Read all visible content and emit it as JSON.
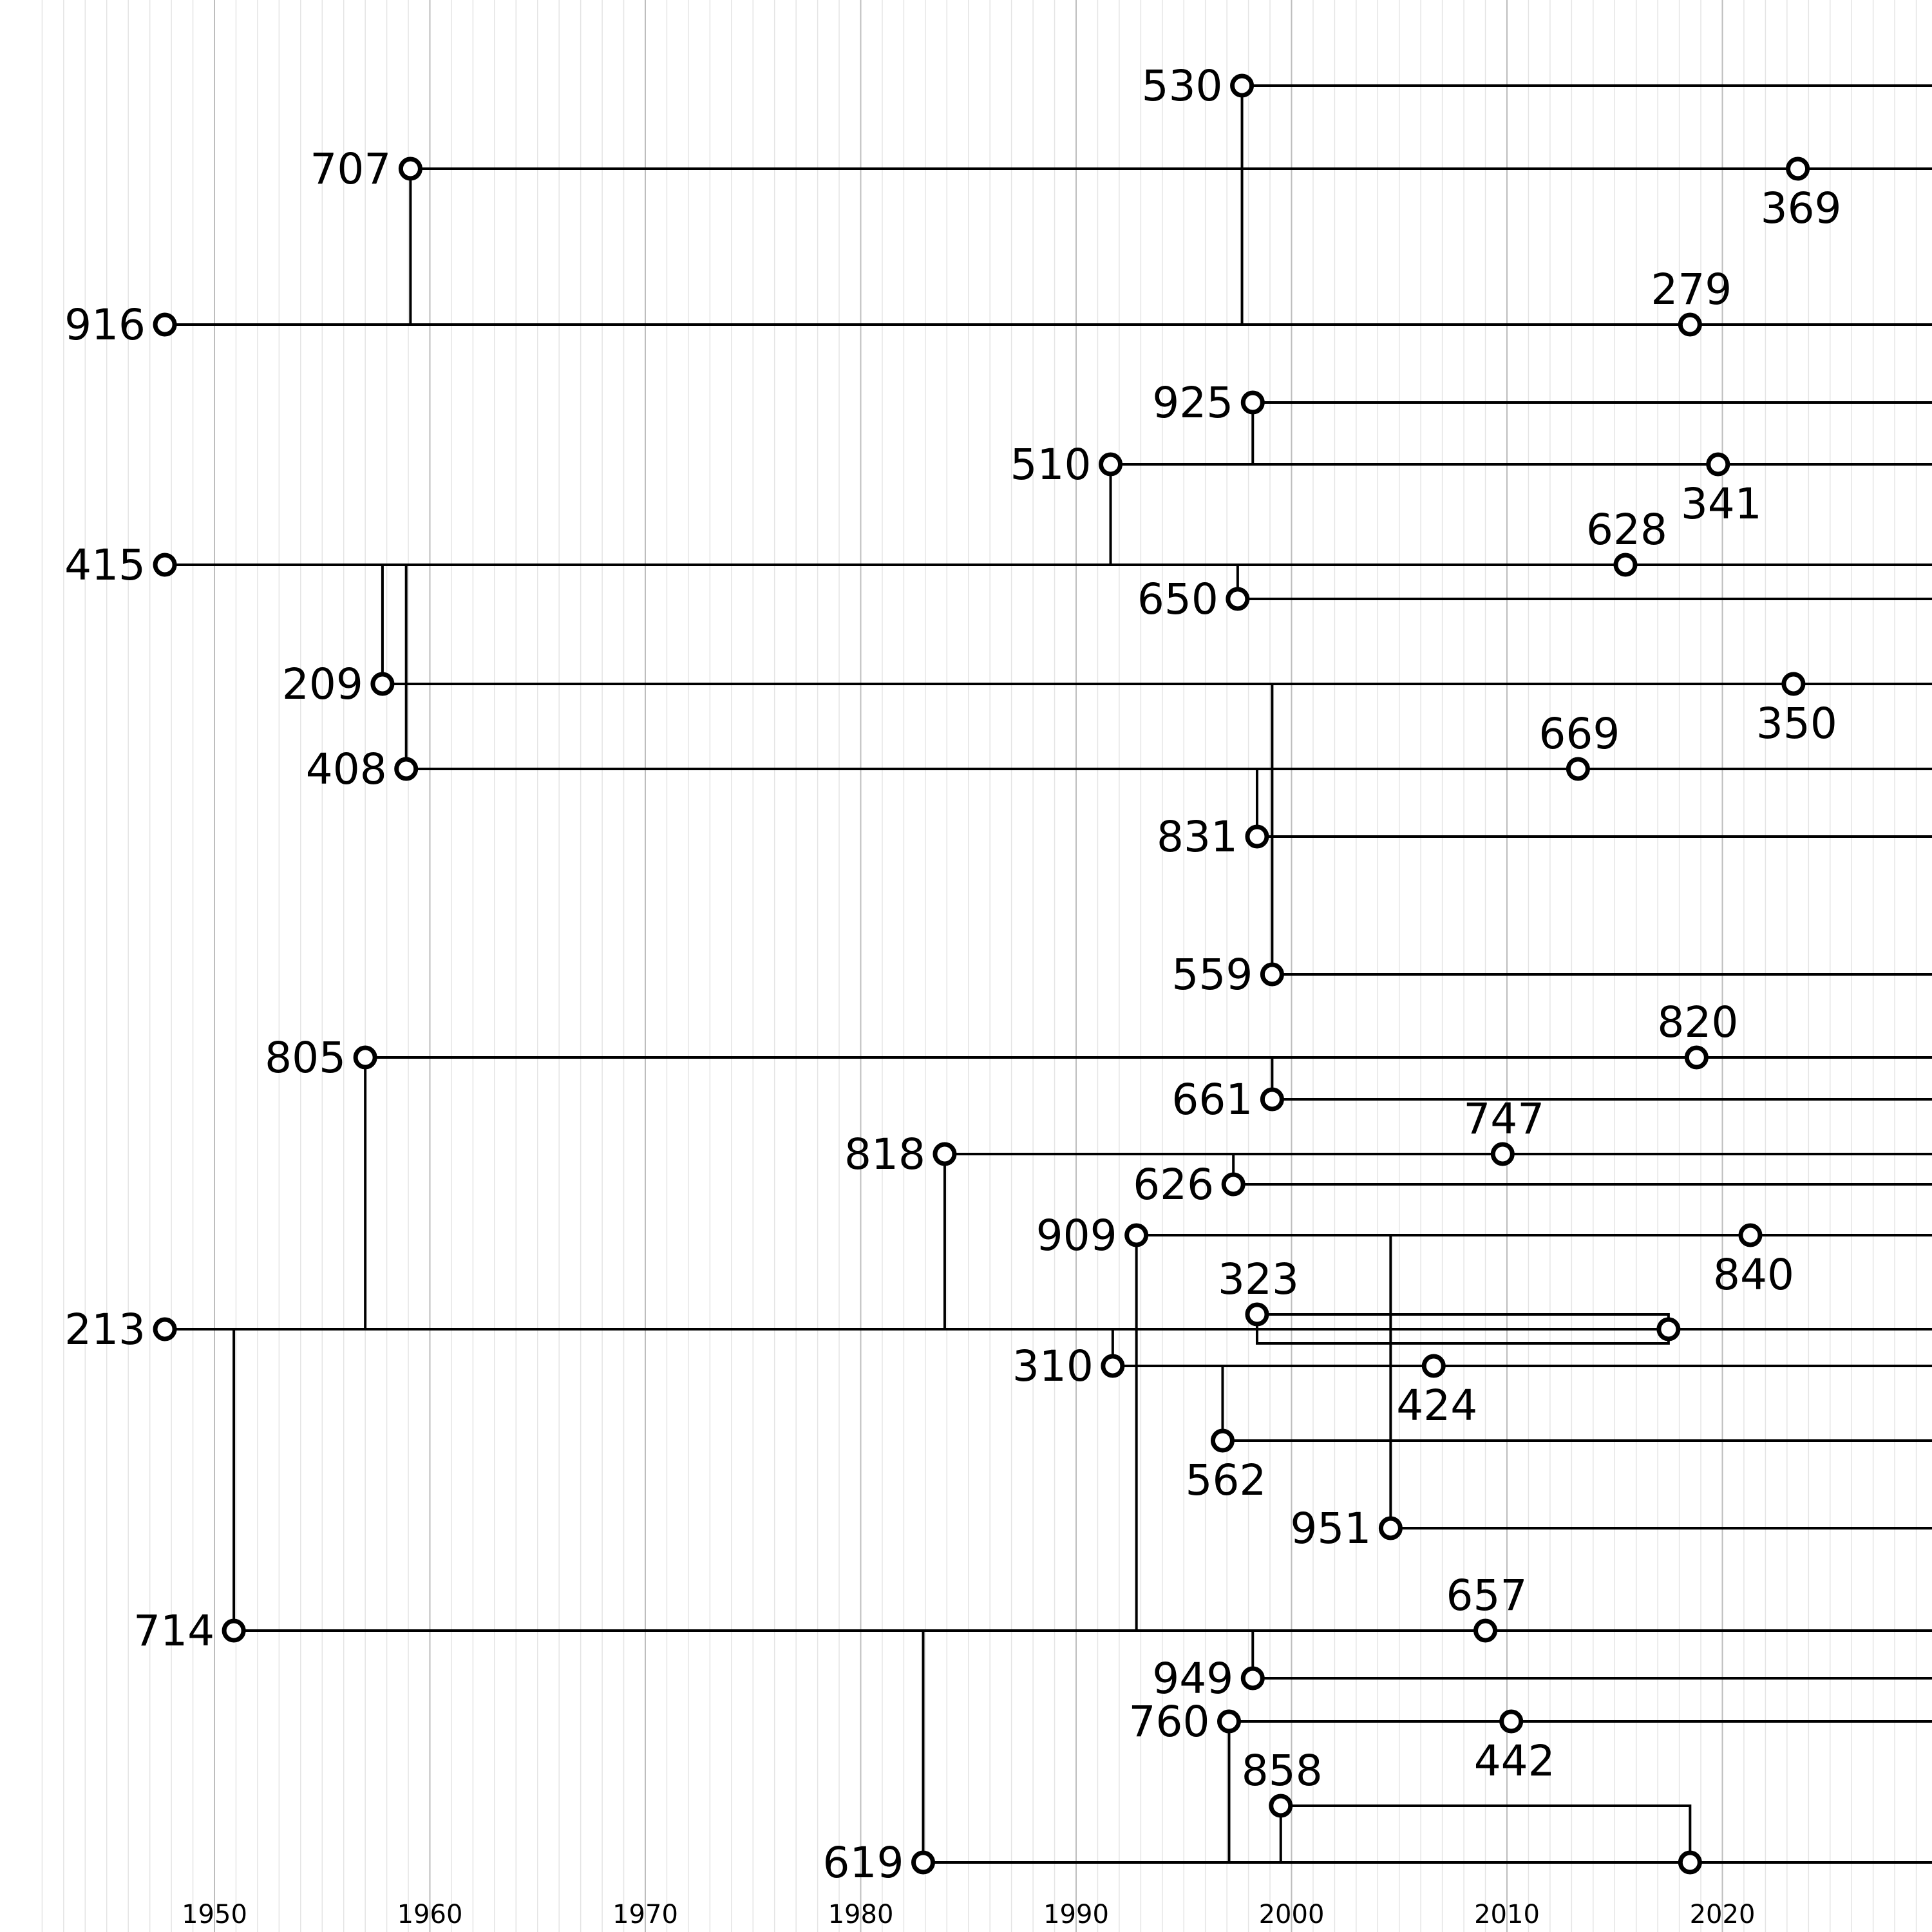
{
  "axis": {
    "years": [
      "1950",
      "1960",
      "1970",
      "1980",
      "1990",
      "2000",
      "2010",
      "2020"
    ],
    "x_start_year": 1942,
    "x_end_year": 2031
  },
  "nodes": [
    {
      "id": "530",
      "year": 1997.7,
      "lane": 1,
      "label": "left"
    },
    {
      "id": "707",
      "year": 1959.1,
      "lane": 2,
      "label": "left"
    },
    {
      "id": "369",
      "year": 2023.5,
      "lane": 2,
      "label": "below"
    },
    {
      "id": "916",
      "year": 1947.7,
      "lane": 3,
      "label": "left"
    },
    {
      "id": "279",
      "year": 2018.5,
      "lane": 3,
      "label": "above"
    },
    {
      "id": "925",
      "year": 1998.2,
      "lane": 4,
      "label": "left"
    },
    {
      "id": "510",
      "year": 1991.6,
      "lane": 5,
      "label": "left"
    },
    {
      "id": "341",
      "year": 2019.8,
      "lane": 5,
      "label": "below"
    },
    {
      "id": "415",
      "year": 1947.7,
      "lane": 6,
      "label": "left"
    },
    {
      "id": "628",
      "year": 2015.5,
      "lane": 6,
      "label": "above"
    },
    {
      "id": "650",
      "year": 1997.5,
      "lane": 7,
      "label": "left"
    },
    {
      "id": "209",
      "year": 1957.8,
      "lane": 8,
      "label": "left"
    },
    {
      "id": "350",
      "year": 2023.3,
      "lane": 8,
      "label": "below"
    },
    {
      "id": "408",
      "year": 1958.9,
      "lane": 9,
      "label": "left"
    },
    {
      "id": "669",
      "year": 2013.3,
      "lane": 9,
      "label": "above"
    },
    {
      "id": "831",
      "year": 1998.4,
      "lane": 10,
      "label": "left"
    },
    {
      "id": "559",
      "year": 1999.1,
      "lane": 11,
      "label": "left"
    },
    {
      "id": "805",
      "year": 1957.0,
      "lane": 12,
      "label": "left"
    },
    {
      "id": "820",
      "year": 2018.8,
      "lane": 12,
      "label": "above"
    },
    {
      "id": "661",
      "year": 1999.1,
      "lane": 13,
      "label": "left"
    },
    {
      "id": "818",
      "year": 1983.9,
      "lane": 14,
      "label": "left"
    },
    {
      "id": "747",
      "year": 2009.8,
      "lane": 14,
      "label": "above"
    },
    {
      "id": "626",
      "year": 1997.3,
      "lane": 15,
      "label": "left"
    },
    {
      "id": "909",
      "year": 1992.8,
      "lane": 16,
      "label": "left"
    },
    {
      "id": "840",
      "year": 2021.3,
      "lane": 16,
      "label": "below"
    },
    {
      "id": "323",
      "year": 1998.4,
      "lane": 17,
      "label": "above"
    },
    {
      "id": "213",
      "year": 1947.7,
      "lane": 18,
      "label": "left"
    },
    {
      "id": "310",
      "year": 1991.7,
      "lane": 19,
      "label": "left"
    },
    {
      "id": "424",
      "year": 2006.6,
      "lane": 19,
      "label": "below"
    },
    {
      "id": "562",
      "year": 1996.8,
      "lane": 20,
      "label": "below"
    },
    {
      "id": "951",
      "year": 2004.6,
      "lane": 21,
      "label": "left"
    },
    {
      "id": "714",
      "year": 1950.9,
      "lane": 22,
      "label": "left"
    },
    {
      "id": "657",
      "year": 2009.0,
      "lane": 22,
      "label": "above"
    },
    {
      "id": "949",
      "year": 1998.2,
      "lane": 23,
      "label": "left"
    },
    {
      "id": "760",
      "year": 1997.1,
      "lane": 24,
      "label": "left"
    },
    {
      "id": "442",
      "year": 2010.2,
      "lane": 24,
      "label": "below"
    },
    {
      "id": "858",
      "year": 1999.5,
      "lane": 25,
      "label": "above"
    },
    {
      "id": "619",
      "year": 1982.9,
      "lane": 26,
      "label": "left"
    }
  ],
  "lines": [
    {
      "lane": 1,
      "from_year": 1997.7
    },
    {
      "lane": 2,
      "from_year": 1959.1
    },
    {
      "lane": 3,
      "from_year": 1947.7
    },
    {
      "lane": 4,
      "from_year": 1998.2
    },
    {
      "lane": 5,
      "from_year": 1991.6
    },
    {
      "lane": 6,
      "from_year": 1947.7
    },
    {
      "lane": 7,
      "from_year": 1997.5
    },
    {
      "lane": 8,
      "from_year": 1957.8
    },
    {
      "lane": 9,
      "from_year": 1958.9
    },
    {
      "lane": 10,
      "from_year": 1998.4
    },
    {
      "lane": 11,
      "from_year": 1999.1
    },
    {
      "lane": 12,
      "from_year": 1957.0
    },
    {
      "lane": 13,
      "from_year": 1999.1
    },
    {
      "lane": 14,
      "from_year": 1983.9
    },
    {
      "lane": 15,
      "from_year": 1997.3
    },
    {
      "lane": 16,
      "from_year": 1992.8
    },
    {
      "lane": 18,
      "from_year": 1947.7
    },
    {
      "lane": 19,
      "from_year": 1991.7
    },
    {
      "lane": 20,
      "from_year": 1996.8
    },
    {
      "lane": 21,
      "from_year": 2004.6
    },
    {
      "lane": 22,
      "from_year": 1950.9
    },
    {
      "lane": 23,
      "from_year": 1998.2
    },
    {
      "lane": 24,
      "from_year": 1997.1
    },
    {
      "lane": 26,
      "from_year": 1982.9
    }
  ],
  "links": [
    {
      "year": 1997.7,
      "from_lane": 1,
      "to_lane": 3
    },
    {
      "year": 1959.1,
      "from_lane": 2,
      "to_lane": 3
    },
    {
      "year": 1998.2,
      "from_lane": 4,
      "to_lane": 5
    },
    {
      "year": 1991.6,
      "from_lane": 5,
      "to_lane": 6
    },
    {
      "year": 1997.5,
      "from_lane": 6,
      "to_lane": 7
    },
    {
      "year": 1957.8,
      "from_lane": 6,
      "to_lane": 8
    },
    {
      "year": 1958.9,
      "from_lane": 6,
      "to_lane": 9
    },
    {
      "year": 1998.4,
      "from_lane": 9,
      "to_lane": 10
    },
    {
      "year": 1999.1,
      "from_lane": 8,
      "to_lane": 11
    },
    {
      "year": 1999.1,
      "from_lane": 12,
      "to_lane": 13
    },
    {
      "year": 1957.0,
      "from_lane": 12,
      "to_lane": 18
    },
    {
      "year": 1997.3,
      "from_lane": 14,
      "to_lane": 15
    },
    {
      "year": 1983.9,
      "from_lane": 14,
      "to_lane": 18
    },
    {
      "year": 1992.8,
      "from_lane": 16,
      "to_lane": 22
    },
    {
      "year": 2004.6,
      "from_lane": 16,
      "to_lane": 21
    },
    {
      "year": 1991.7,
      "from_lane": 18,
      "to_lane": 19
    },
    {
      "year": 1996.8,
      "from_lane": 19,
      "to_lane": 20
    },
    {
      "year": 1950.9,
      "from_lane": 18,
      "to_lane": 22
    },
    {
      "year": 1998.2,
      "from_lane": 22,
      "to_lane": 23
    },
    {
      "year": 1982.9,
      "from_lane": 22,
      "to_lane": 26
    },
    {
      "year": 1997.1,
      "from_lane": 24,
      "to_lane": 26
    },
    {
      "year": 1999.5,
      "from_lane": 25,
      "to_lane": 26
    }
  ],
  "loops": [
    {
      "from_year": 1998.4,
      "to_year": 2017.5,
      "top_lane": 17,
      "merge_lane": 18
    },
    {
      "from_year": 1999.5,
      "to_year": 2018.5,
      "top_lane": 25,
      "merge_lane": 26
    }
  ],
  "merge_nodes": [
    {
      "year": 2017.5,
      "lane": 18
    },
    {
      "year": 2018.5,
      "lane": 26
    }
  ]
}
